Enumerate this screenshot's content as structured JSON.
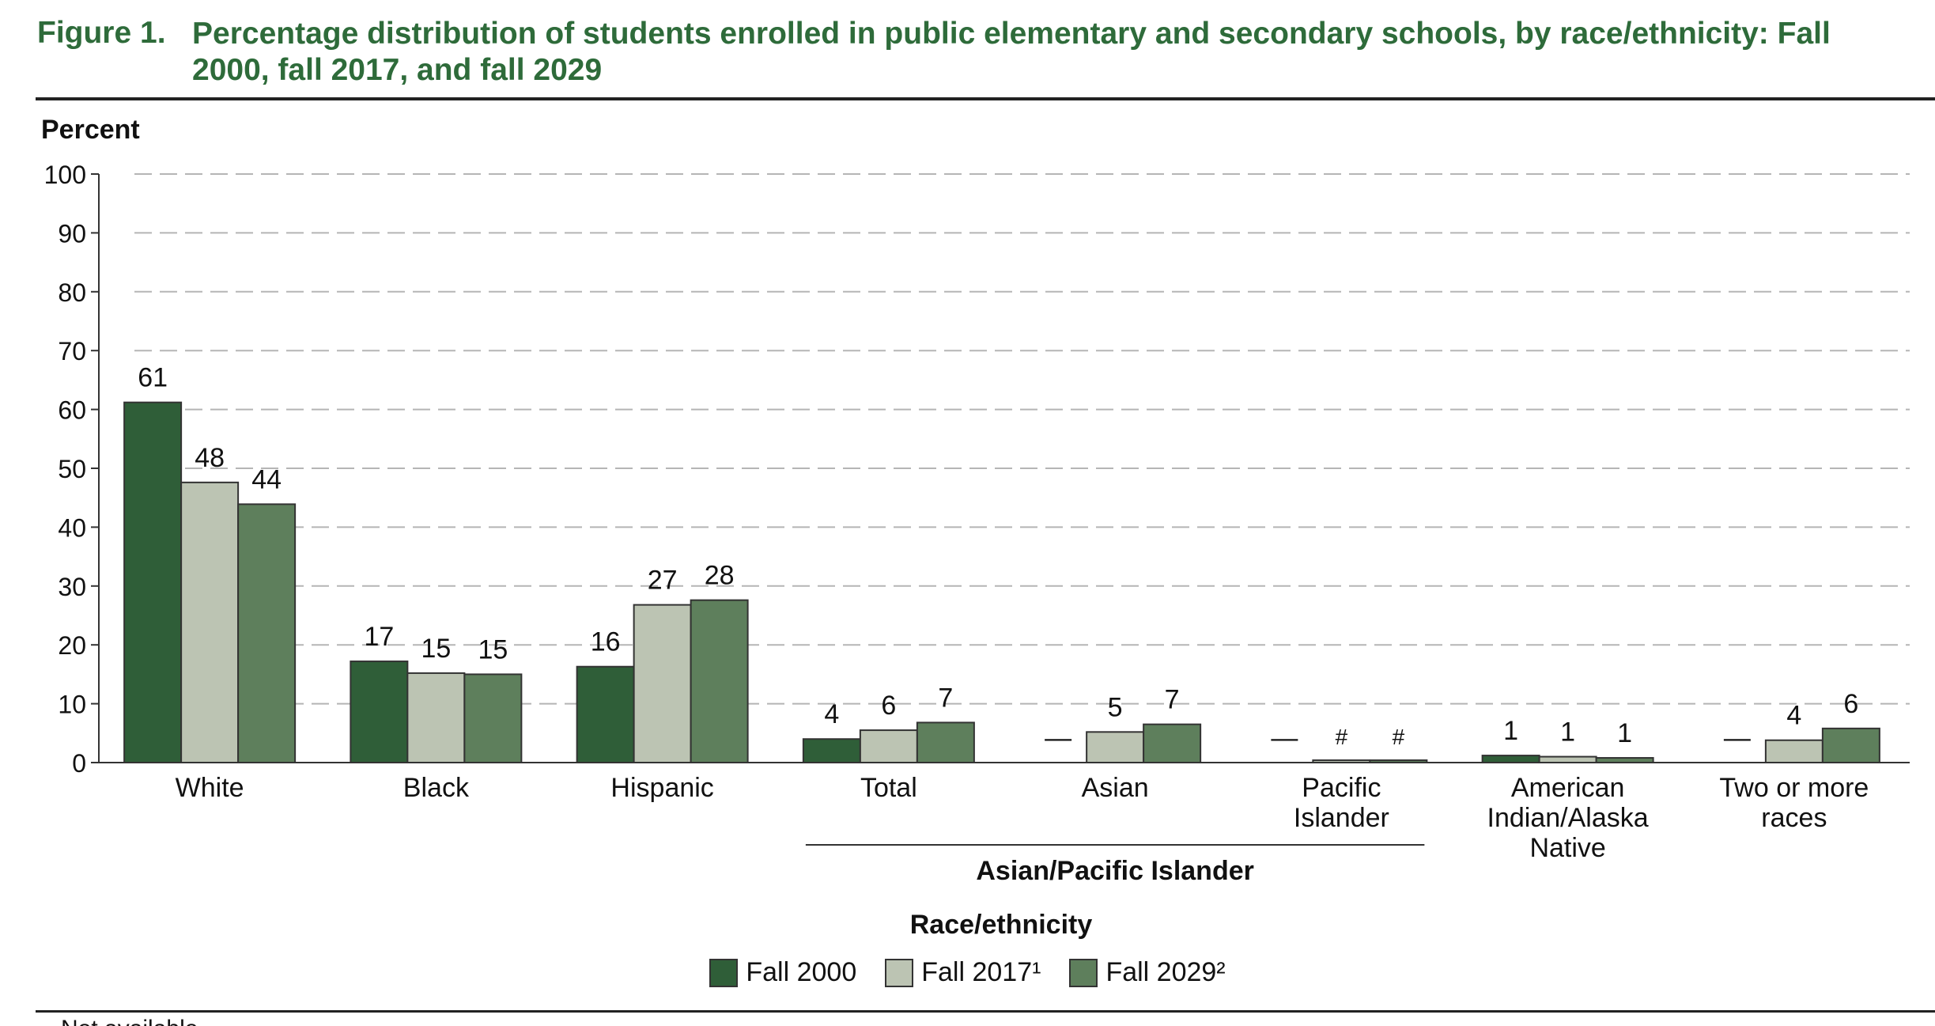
{
  "figure": {
    "label": "Figure 1.",
    "title": "Percentage distribution of students enrolled in public elementary and secondary schools, by race/ethnicity: Fall 2000, fall 2017, and fall 2029"
  },
  "footnote_fragment": "—Not available.",
  "chart_data": {
    "type": "bar",
    "ylabel": "Percent",
    "xlabel": "Race/ethnicity",
    "ylim": [
      0,
      100
    ],
    "yticks": [
      0,
      10,
      20,
      30,
      40,
      50,
      60,
      70,
      80,
      90,
      100
    ],
    "grid": "dashed horizontal",
    "legend_position": "bottom-center",
    "categories": [
      "White",
      "Black",
      "Hispanic",
      "Total",
      "Asian",
      "Pacific Islander",
      "American Indian/Alaska Native",
      "Two or more races"
    ],
    "category_label_lines": [
      [
        "White"
      ],
      [
        "Black"
      ],
      [
        "Hispanic"
      ],
      [
        "Total"
      ],
      [
        "Asian"
      ],
      [
        "Pacific",
        "Islander"
      ],
      [
        "American",
        "Indian/Alaska",
        "Native"
      ],
      [
        "Two or more",
        "races"
      ]
    ],
    "group_bracket": {
      "label": "Asian/Pacific Islander",
      "categories": [
        "Total",
        "Asian",
        "Pacific Islander"
      ]
    },
    "series": [
      {
        "name": "Fall 2000",
        "legend_label": "Fall 2000",
        "color": "#2f5e38",
        "values": [
          61.2,
          17.2,
          16.3,
          4.0,
          null,
          null,
          1.2,
          null
        ],
        "data_labels": [
          "61",
          "17",
          "16",
          "4",
          "—",
          "—",
          "1",
          "—"
        ]
      },
      {
        "name": "Fall 2017",
        "legend_label": "Fall 2017¹",
        "color": "#bcc4b3",
        "values": [
          47.6,
          15.2,
          26.8,
          5.5,
          5.2,
          0.4,
          1.0,
          3.8
        ],
        "data_labels": [
          "48",
          "15",
          "27",
          "6",
          "5",
          "#",
          "1",
          "4"
        ]
      },
      {
        "name": "Fall 2029",
        "legend_label": "Fall 2029²",
        "color": "#5e7f5c",
        "values": [
          43.9,
          15.0,
          27.6,
          6.8,
          6.5,
          0.4,
          0.8,
          5.8
        ],
        "data_labels": [
          "44",
          "15",
          "28",
          "7",
          "7",
          "#",
          "1",
          "6"
        ]
      }
    ]
  }
}
